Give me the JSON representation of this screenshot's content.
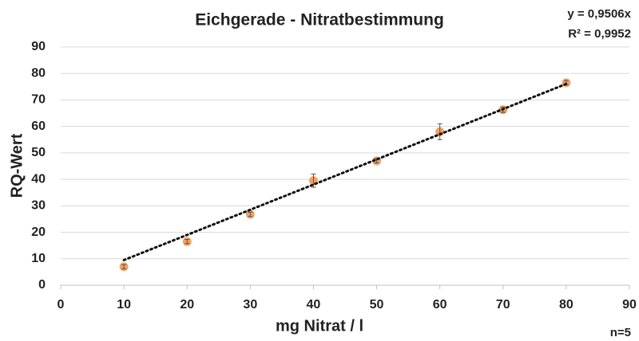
{
  "chart_data": {
    "type": "scatter",
    "title": "Eichgerade - Nitratbestimmung",
    "x_label": "mg Nitrat / l",
    "y_label": "RQ-Wert",
    "x": [
      10,
      20,
      30,
      40,
      50,
      60,
      70,
      80
    ],
    "values": [
      7,
      16.5,
      26.8,
      39.5,
      47,
      58,
      66.3,
      76.5
    ],
    "errors": [
      0.8,
      0.8,
      0.8,
      2.5,
      0.8,
      3,
      1,
      0.8
    ],
    "color": "#f4a261",
    "trendline": {
      "slope": 0.9506,
      "label": "y = 0,9506x"
    },
    "r2_label": "R² = 0,9952",
    "note": "n=5",
    "xlim": [
      0,
      90
    ],
    "xticks": [
      0,
      10,
      20,
      30,
      40,
      50,
      60,
      70,
      80,
      90
    ],
    "ylim": [
      0,
      90
    ],
    "yticks": [
      0,
      10,
      20,
      30,
      40,
      50,
      60,
      70,
      80,
      90
    ],
    "grid": true
  }
}
